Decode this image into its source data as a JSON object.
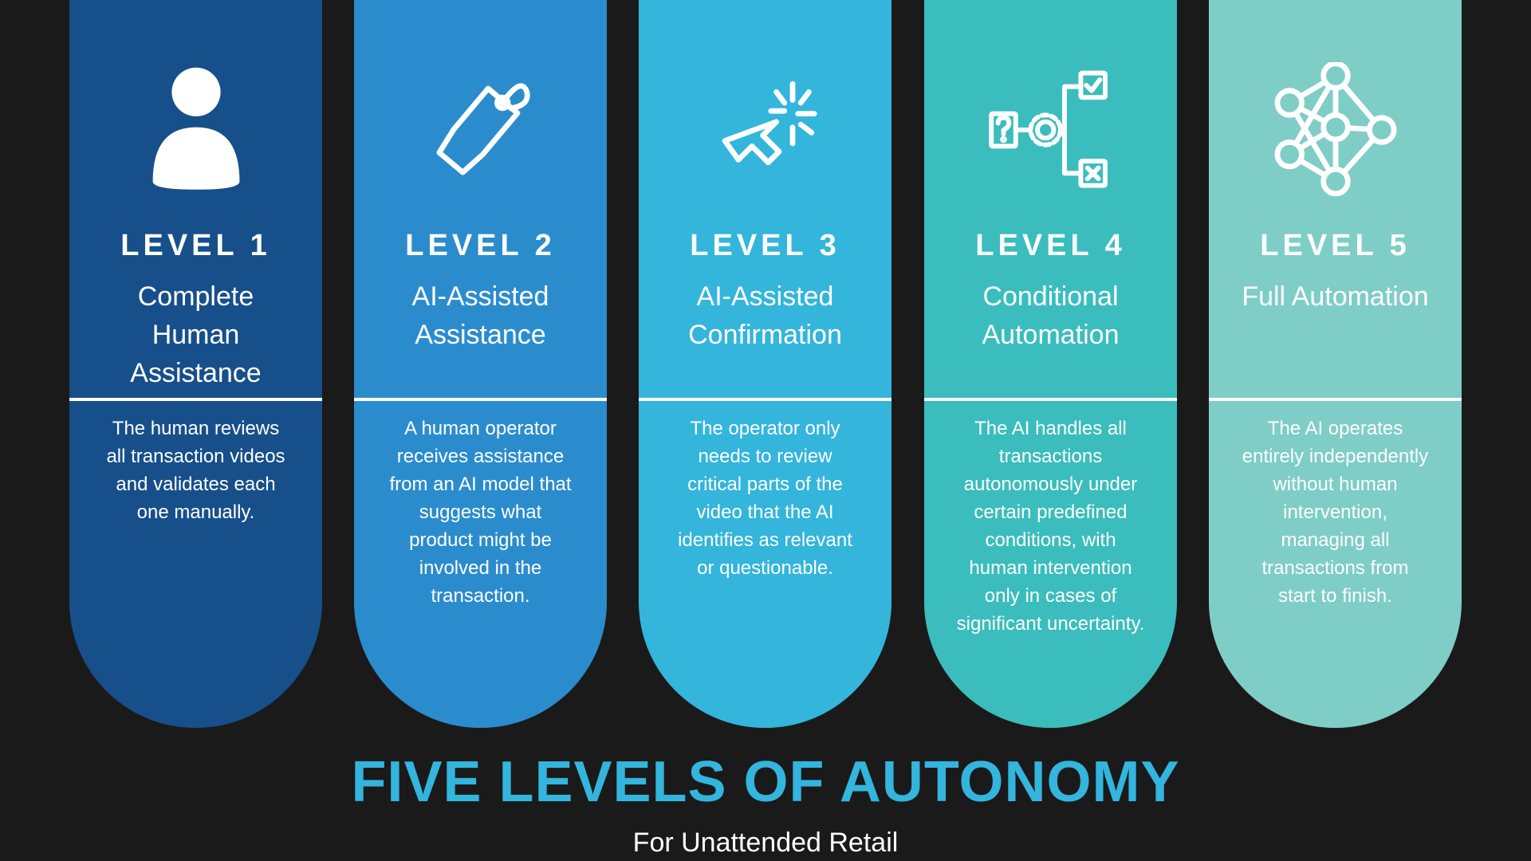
{
  "title": "FIVE LEVELS OF AUTONOMY",
  "subtitle": "For Unattended Retail",
  "colors": {
    "background": "#1a1a1a",
    "title": "#33b5dd",
    "text": "#ffffff"
  },
  "levels": [
    {
      "label": "LEVEL 1",
      "title": "Complete Human Assistance",
      "description": "The human reviews all transaction videos and validates each one manually.",
      "icon": "person-icon",
      "color": "#174f8a"
    },
    {
      "label": "LEVEL 2",
      "title": "AI-Assisted Assistance",
      "description": "A human operator receives assistance from an AI model that suggests what product might be involved in the transaction.",
      "icon": "tag-icon",
      "color": "#2b8ccd"
    },
    {
      "label": "LEVEL 3",
      "title": "AI-Assisted Confirmation",
      "description": "The operator only needs to review critical parts of the video that the AI identifies as relevant or questionable.",
      "icon": "cursor-click-icon",
      "color": "#34b5dc"
    },
    {
      "label": "LEVEL 4",
      "title": "Conditional Automation",
      "description": "The AI handles all transactions autonomously under certain predefined conditions, with human intervention only in cases of significant uncertainty.",
      "icon": "decision-flow-icon",
      "color": "#3bbdbd"
    },
    {
      "label": "LEVEL 5",
      "title": "Full Automation",
      "description": "The AI operates entirely independently without human intervention, managing all transactions from start to finish.",
      "icon": "neural-network-icon",
      "color": "#7fcdc7"
    }
  ]
}
